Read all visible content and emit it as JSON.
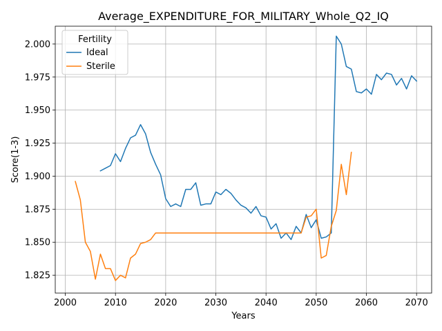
{
  "chart_data": {
    "type": "line",
    "title": "Average_EXPENDITURE_FOR_MILITARY_Whole_Q2_IQ",
    "xlabel": "Years",
    "ylabel": "Score(1-3)",
    "xlim": [
      1998,
      2073
    ],
    "ylim": [
      1.8115,
      2.0135
    ],
    "xticks": [
      2000,
      2010,
      2020,
      2030,
      2040,
      2050,
      2060,
      2070
    ],
    "yticks": [
      1.825,
      1.85,
      1.875,
      1.9,
      1.925,
      1.95,
      1.975,
      2.0
    ],
    "ytick_labels": [
      "1.825",
      "1.850",
      "1.875",
      "1.900",
      "1.925",
      "1.950",
      "1.975",
      "2.000"
    ],
    "grid": true,
    "legend": {
      "title": "Fertility",
      "placement": "top-left"
    },
    "series": [
      {
        "name": "Ideal",
        "color": "#1f77b4",
        "x": [
          2007,
          2008,
          2009,
          2010,
          2011,
          2012,
          2013,
          2014,
          2015,
          2016,
          2017,
          2018,
          2019,
          2020,
          2021,
          2022,
          2023,
          2024,
          2025,
          2026,
          2027,
          2028,
          2029,
          2030,
          2031,
          2032,
          2033,
          2034,
          2035,
          2036,
          2037,
          2038,
          2039,
          2040,
          2041,
          2042,
          2043,
          2044,
          2045,
          2046,
          2047,
          2048,
          2049,
          2050,
          2051,
          2052,
          2053,
          2054,
          2055,
          2056,
          2057,
          2058,
          2059,
          2060,
          2061,
          2062,
          2063,
          2064,
          2065,
          2066,
          2067,
          2068,
          2069,
          2070
        ],
        "values": [
          1.904,
          1.906,
          1.908,
          1.917,
          1.911,
          1.921,
          1.929,
          1.931,
          1.939,
          1.932,
          1.918,
          1.909,
          1.901,
          1.883,
          1.877,
          1.879,
          1.877,
          1.89,
          1.89,
          1.895,
          1.878,
          1.879,
          1.879,
          1.888,
          1.886,
          1.89,
          1.887,
          1.882,
          1.878,
          1.876,
          1.872,
          1.877,
          1.87,
          1.869,
          1.86,
          1.864,
          1.853,
          1.857,
          1.852,
          1.862,
          1.857,
          1.871,
          1.861,
          1.867,
          1.853,
          1.854,
          1.857,
          2.006,
          2.0,
          1.983,
          1.981,
          1.964,
          1.963,
          1.966,
          1.962,
          1.977,
          1.973,
          1.978,
          1.977,
          1.969,
          1.974,
          1.966,
          1.976,
          1.972
        ]
      },
      {
        "name": "Sterile",
        "color": "#ff7f0e",
        "x": [
          2002,
          2003,
          2004,
          2005,
          2006,
          2007,
          2008,
          2009,
          2010,
          2011,
          2012,
          2013,
          2014,
          2015,
          2016,
          2017,
          2018,
          2019,
          2020,
          2021,
          2022,
          2023,
          2024,
          2025,
          2026,
          2027,
          2028,
          2029,
          2030,
          2031,
          2032,
          2033,
          2034,
          2035,
          2036,
          2037,
          2038,
          2039,
          2040,
          2041,
          2042,
          2043,
          2044,
          2045,
          2046,
          2047,
          2048,
          2049,
          2050,
          2051,
          2052,
          2053,
          2054,
          2055,
          2056,
          2057
        ],
        "values": [
          1.896,
          1.882,
          1.85,
          1.843,
          1.822,
          1.841,
          1.83,
          1.83,
          1.821,
          1.825,
          1.823,
          1.838,
          1.841,
          1.849,
          1.85,
          1.852,
          1.857,
          1.857,
          1.857,
          1.857,
          1.857,
          1.857,
          1.857,
          1.857,
          1.857,
          1.857,
          1.857,
          1.857,
          1.857,
          1.857,
          1.857,
          1.857,
          1.857,
          1.857,
          1.857,
          1.857,
          1.857,
          1.857,
          1.857,
          1.857,
          1.857,
          1.857,
          1.857,
          1.857,
          1.857,
          1.857,
          1.869,
          1.87,
          1.875,
          1.838,
          1.84,
          1.862,
          1.874,
          1.909,
          1.886,
          1.918
        ]
      }
    ]
  }
}
